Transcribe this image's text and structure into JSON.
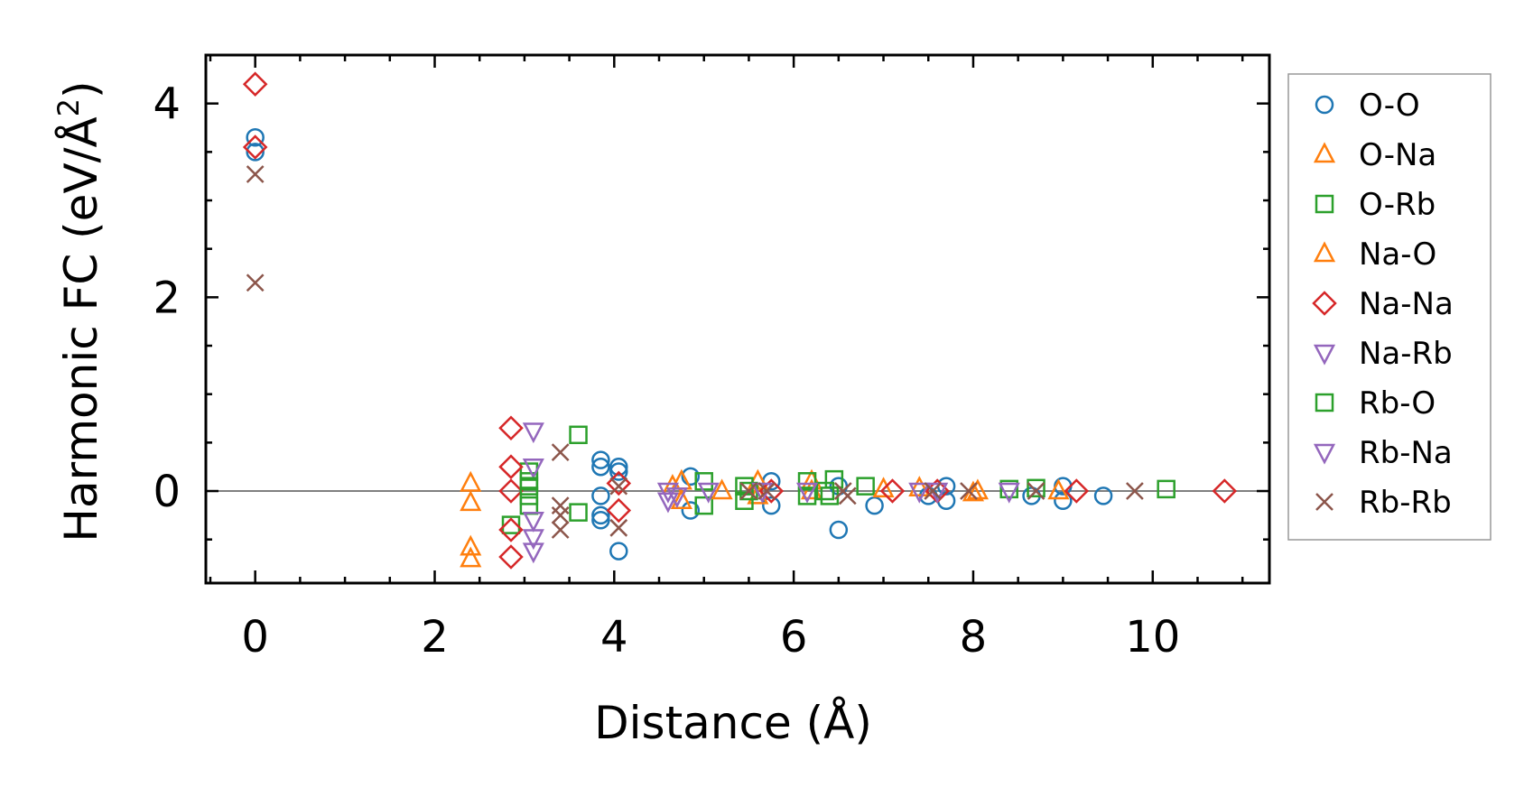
{
  "chart_data": {
    "type": "scatter",
    "xlabel": "Distance (Å)",
    "ylabel": "Harmonic FC (eV/Å",
    "ylabel_sup": "2",
    "ylabel_close": ")",
    "xlim": [
      -0.55,
      11.3
    ],
    "ylim": [
      -0.95,
      4.5
    ],
    "x_ticks": [
      0,
      2,
      4,
      6,
      8,
      10
    ],
    "x_tick_labels": [
      "0",
      "2",
      "4",
      "6",
      "8",
      "10"
    ],
    "y_ticks": [
      0,
      2,
      4
    ],
    "y_tick_labels": [
      "0",
      "2",
      "4"
    ],
    "zero_line": true,
    "grid": false,
    "legend_position": "outside-right",
    "series": [
      {
        "name": "O-O",
        "marker": "circle",
        "color": "#1f77b4",
        "points": [
          [
            0,
            3.65
          ],
          [
            0,
            3.5
          ],
          [
            3.85,
            0.32
          ],
          [
            3.85,
            0.25
          ],
          [
            3.85,
            -0.05
          ],
          [
            3.85,
            -0.25
          ],
          [
            3.85,
            -0.3
          ],
          [
            4.05,
            0.25
          ],
          [
            4.05,
            0.2
          ],
          [
            4.05,
            -0.62
          ],
          [
            4.85,
            0.15
          ],
          [
            4.85,
            -0.2
          ],
          [
            5.75,
            0.1
          ],
          [
            5.75,
            -0.15
          ],
          [
            6.5,
            0.05
          ],
          [
            6.5,
            -0.4
          ],
          [
            6.9,
            -0.15
          ],
          [
            7.5,
            -0.05
          ],
          [
            7.7,
            0.05
          ],
          [
            7.7,
            -0.1
          ],
          [
            8.65,
            -0.05
          ],
          [
            9.0,
            0.05
          ],
          [
            9.0,
            -0.1
          ],
          [
            9.45,
            -0.05
          ]
        ]
      },
      {
        "name": "O-Na",
        "marker": "triangle-up",
        "color": "#ff7f0e",
        "points": [
          [
            2.4,
            0.08
          ],
          [
            2.4,
            -0.12
          ],
          [
            2.4,
            -0.58
          ],
          [
            2.4,
            -0.7
          ],
          [
            4.75,
            0.1
          ],
          [
            4.75,
            -0.1
          ],
          [
            5.6,
            0.1
          ],
          [
            5.6,
            -0.05
          ],
          [
            6.2,
            0.1
          ],
          [
            6.2,
            0.0
          ],
          [
            7.4,
            0.03
          ],
          [
            8.0,
            -0.02
          ],
          [
            8.95,
            0.0
          ]
        ]
      },
      {
        "name": "O-Rb",
        "marker": "square",
        "color": "#2ca02c",
        "points": [
          [
            2.85,
            -0.35
          ],
          [
            3.05,
            0.2
          ],
          [
            3.05,
            0.1
          ],
          [
            3.05,
            -0.05
          ],
          [
            3.05,
            -0.15
          ],
          [
            3.6,
            0.58
          ],
          [
            3.6,
            -0.22
          ],
          [
            5.0,
            0.1
          ],
          [
            5.0,
            -0.15
          ],
          [
            5.45,
            0.05
          ],
          [
            5.45,
            -0.1
          ],
          [
            6.15,
            0.1
          ],
          [
            6.15,
            -0.05
          ],
          [
            6.35,
            0.0
          ],
          [
            6.45,
            0.12
          ],
          [
            6.8,
            0.05
          ],
          [
            8.4,
            0.02
          ],
          [
            8.7,
            0.03
          ],
          [
            10.15,
            0.02
          ]
        ]
      },
      {
        "name": "Na-O",
        "marker": "triangle-up",
        "color": "#ff7f0e",
        "points": [
          [
            4.65,
            0.05
          ],
          [
            5.2,
            0.0
          ],
          [
            7.0,
            0.02
          ],
          [
            8.05,
            0.0
          ]
        ]
      },
      {
        "name": "Na-Na",
        "marker": "diamond",
        "color": "#d62728",
        "points": [
          [
            0,
            4.2
          ],
          [
            0,
            3.55
          ],
          [
            2.85,
            0.65
          ],
          [
            2.85,
            0.25
          ],
          [
            2.85,
            0.0
          ],
          [
            2.85,
            -0.4
          ],
          [
            2.85,
            -0.68
          ],
          [
            4.05,
            0.08
          ],
          [
            4.05,
            -0.2
          ],
          [
            5.75,
            0.0
          ],
          [
            7.1,
            0.0
          ],
          [
            7.6,
            0.0
          ],
          [
            9.15,
            0.0
          ],
          [
            10.8,
            0.0
          ]
        ]
      },
      {
        "name": "Na-Rb",
        "marker": "triangle-down",
        "color": "#9467bd",
        "points": [
          [
            3.1,
            0.62
          ],
          [
            3.1,
            0.25
          ],
          [
            3.1,
            -0.3
          ],
          [
            3.1,
            -0.48
          ],
          [
            3.1,
            -0.62
          ],
          [
            4.6,
            0.0
          ],
          [
            4.6,
            -0.1
          ],
          [
            5.05,
            0.0
          ],
          [
            6.15,
            0.0
          ],
          [
            7.4,
            0.0
          ],
          [
            8.4,
            0.0
          ]
        ]
      },
      {
        "name": "Rb-O",
        "marker": "square",
        "color": "#2ca02c",
        "points": [
          [
            3.05,
            0.05
          ],
          [
            5.5,
            0.0
          ],
          [
            6.4,
            -0.05
          ]
        ]
      },
      {
        "name": "Rb-Na",
        "marker": "triangle-down",
        "color": "#9467bd",
        "points": [
          [
            4.7,
            -0.05
          ],
          [
            5.65,
            0.0
          ],
          [
            7.6,
            0.0
          ]
        ]
      },
      {
        "name": "Rb-Rb",
        "marker": "x",
        "color": "#8c564b",
        "points": [
          [
            0,
            3.27
          ],
          [
            0,
            2.15
          ],
          [
            3.4,
            0.4
          ],
          [
            3.4,
            -0.15
          ],
          [
            3.4,
            -0.25
          ],
          [
            3.4,
            -0.4
          ],
          [
            4.05,
            0.05
          ],
          [
            4.05,
            -0.38
          ],
          [
            5.5,
            0.0
          ],
          [
            5.7,
            0.0
          ],
          [
            6.55,
            0.0
          ],
          [
            6.6,
            -0.05
          ],
          [
            7.55,
            0.0
          ],
          [
            7.95,
            0.0
          ],
          [
            8.7,
            0.0
          ],
          [
            9.8,
            0.0
          ]
        ]
      }
    ]
  }
}
